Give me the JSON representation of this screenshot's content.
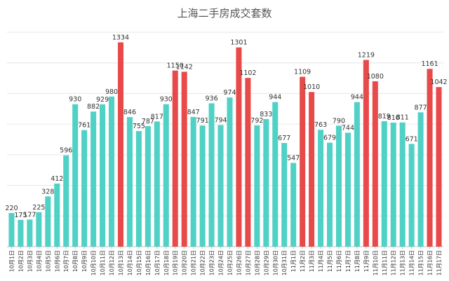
{
  "chart_data": {
    "type": "bar",
    "title": "上海二手房成交套数",
    "xlabel": "",
    "ylabel": "",
    "ylim": [
      0,
      1400
    ],
    "grid": true,
    "legend": "none",
    "colors": {
      "normal": "#4fd1c5",
      "highlight": "#e84a4a",
      "grid": "#e6e6e6",
      "axis": "#bfbfbf"
    },
    "categories": [
      "10月1日",
      "10月2日",
      "10月3日",
      "10月4日",
      "10月5日",
      "10月6日",
      "10月7日",
      "10月8日",
      "10月9日",
      "10月10日",
      "10月11日",
      "10月12日",
      "10月13日",
      "10月14日",
      "10月15日",
      "10月16日",
      "10月17日",
      "10月18日",
      "10月19日",
      "10月20日",
      "10月21日",
      "10月22日",
      "10月23日",
      "10月24日",
      "10月25日",
      "10月26日",
      "10月27日",
      "10月28日",
      "10月29日",
      "10月30日",
      "10月31日",
      "11月1日",
      "11月2日",
      "11月3日",
      "11月4日",
      "11月5日",
      "11月6日",
      "11月7日",
      "11月8日",
      "11月9日",
      "11月10日",
      "11月11日",
      "11月12日",
      "11月13日",
      "11月14日",
      "11月15日",
      "11月16日",
      "11月17日"
    ],
    "values": [
      220,
      175,
      177,
      225,
      328,
      412,
      596,
      930,
      761,
      882,
      929,
      980,
      1334,
      846,
      755,
      787,
      817,
      930,
      1150,
      1142,
      847,
      791,
      936,
      794,
      974,
      1301,
      1102,
      792,
      833,
      944,
      677,
      547,
      1109,
      1010,
      763,
      679,
      790,
      744,
      944,
      1219,
      1080,
      819,
      810,
      811,
      671,
      877,
      1161,
      1042
    ],
    "highlighted": [
      false,
      false,
      false,
      false,
      false,
      false,
      false,
      false,
      false,
      false,
      false,
      false,
      true,
      false,
      false,
      false,
      false,
      false,
      true,
      true,
      false,
      false,
      false,
      false,
      false,
      true,
      true,
      false,
      false,
      false,
      false,
      false,
      true,
      true,
      false,
      false,
      false,
      false,
      false,
      true,
      true,
      false,
      false,
      false,
      false,
      false,
      true,
      true
    ]
  }
}
